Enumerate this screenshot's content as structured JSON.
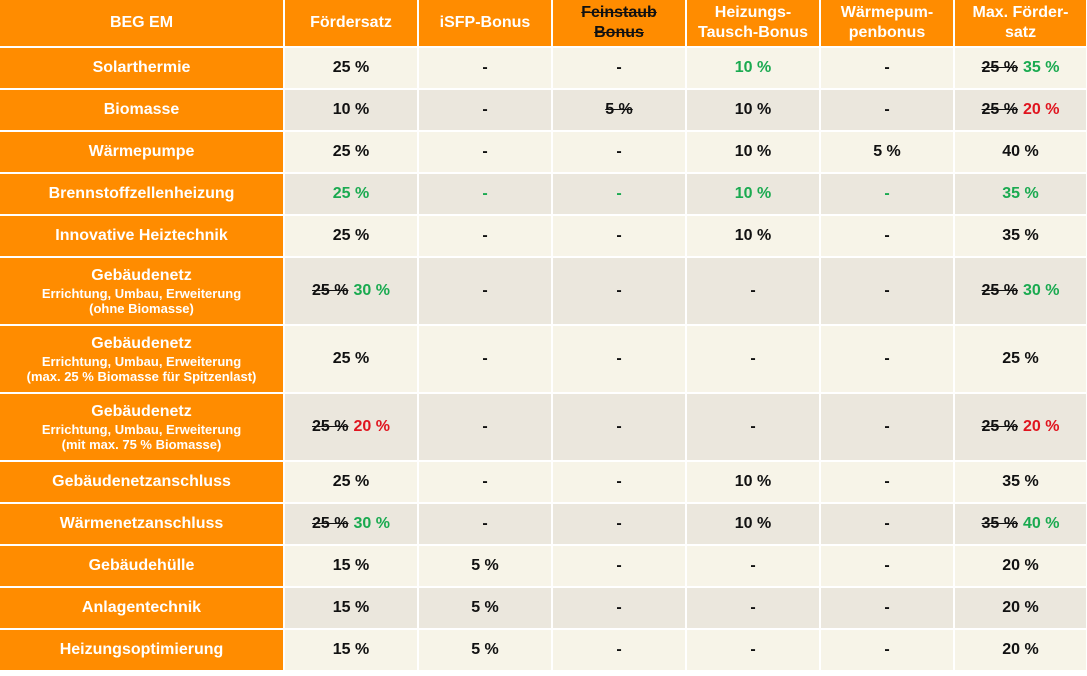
{
  "headers": [
    {
      "text": "BEG EM",
      "strike": false
    },
    {
      "text": "Fördersatz",
      "strike": false
    },
    {
      "text": "iSFP-Bonus",
      "strike": false
    },
    {
      "text": "Feinstaub Bonus",
      "strike": true
    },
    {
      "text": "Heizungs-Tausch-Bonus",
      "strike": false
    },
    {
      "text": "Wärmepum-penbonus",
      "strike": false
    },
    {
      "text": "Max. Förder-satz",
      "strike": false
    }
  ],
  "rows": [
    {
      "label": "Solarthermie",
      "sub": [],
      "cells": [
        [
          {
            "t": "25 %"
          }
        ],
        [
          {
            "t": "-"
          }
        ],
        [
          {
            "t": "-"
          }
        ],
        [
          {
            "t": "10 %",
            "c": "green"
          }
        ],
        [
          {
            "t": "-"
          }
        ],
        [
          {
            "t": "25 %",
            "s": true
          },
          {
            "t": "35 %",
            "c": "green"
          }
        ]
      ]
    },
    {
      "label": "Biomasse",
      "sub": [],
      "cells": [
        [
          {
            "t": "10 %"
          }
        ],
        [
          {
            "t": "-"
          }
        ],
        [
          {
            "t": "5 %",
            "s": true
          }
        ],
        [
          {
            "t": "10 %"
          }
        ],
        [
          {
            "t": "-"
          }
        ],
        [
          {
            "t": "25 %",
            "s": true
          },
          {
            "t": "20 %",
            "c": "red"
          }
        ]
      ]
    },
    {
      "label": "Wärmepumpe",
      "sub": [],
      "cells": [
        [
          {
            "t": "25 %"
          }
        ],
        [
          {
            "t": "-"
          }
        ],
        [
          {
            "t": "-"
          }
        ],
        [
          {
            "t": "10 %"
          }
        ],
        [
          {
            "t": "5 %"
          }
        ],
        [
          {
            "t": "40 %"
          }
        ]
      ]
    },
    {
      "label": "Brennstoffzellenheizung",
      "sub": [],
      "cells": [
        [
          {
            "t": "25 %",
            "c": "green"
          }
        ],
        [
          {
            "t": "-",
            "c": "green"
          }
        ],
        [
          {
            "t": "-",
            "c": "green"
          }
        ],
        [
          {
            "t": "10 %",
            "c": "green"
          }
        ],
        [
          {
            "t": "-",
            "c": "green"
          }
        ],
        [
          {
            "t": "35 %",
            "c": "green"
          }
        ]
      ]
    },
    {
      "label": "Innovative Heiztechnik",
      "sub": [],
      "cells": [
        [
          {
            "t": "25 %"
          }
        ],
        [
          {
            "t": "-"
          }
        ],
        [
          {
            "t": "-"
          }
        ],
        [
          {
            "t": "10 %"
          }
        ],
        [
          {
            "t": "-"
          }
        ],
        [
          {
            "t": "35 %"
          }
        ]
      ]
    },
    {
      "label": "Gebäudenetz",
      "sub": [
        "Errichtung, Umbau, Erweiterung",
        "(ohne Biomasse)"
      ],
      "cells": [
        [
          {
            "t": "25 %",
            "s": true
          },
          {
            "t": "30 %",
            "c": "green"
          }
        ],
        [
          {
            "t": "-"
          }
        ],
        [
          {
            "t": "-"
          }
        ],
        [
          {
            "t": "-"
          }
        ],
        [
          {
            "t": "-"
          }
        ],
        [
          {
            "t": "25 %",
            "s": true
          },
          {
            "t": "30 %",
            "c": "green"
          }
        ]
      ]
    },
    {
      "label": "Gebäudenetz",
      "sub": [
        "Errichtung, Umbau, Erweiterung",
        "(max. 25 % Biomasse für Spitzenlast)"
      ],
      "cells": [
        [
          {
            "t": "25 %"
          }
        ],
        [
          {
            "t": "-"
          }
        ],
        [
          {
            "t": "-"
          }
        ],
        [
          {
            "t": "-"
          }
        ],
        [
          {
            "t": "-"
          }
        ],
        [
          {
            "t": "25 %"
          }
        ]
      ]
    },
    {
      "label": "Gebäudenetz",
      "sub": [
        "Errichtung, Umbau, Erweiterung",
        "(mit max. 75 % Biomasse)"
      ],
      "cells": [
        [
          {
            "t": "25 %",
            "s": true
          },
          {
            "t": "20 %",
            "c": "red"
          }
        ],
        [
          {
            "t": "-"
          }
        ],
        [
          {
            "t": "-"
          }
        ],
        [
          {
            "t": "-"
          }
        ],
        [
          {
            "t": "-"
          }
        ],
        [
          {
            "t": "25 %",
            "s": true
          },
          {
            "t": "20 %",
            "c": "red"
          }
        ]
      ]
    },
    {
      "label": "Gebäudenetzanschluss",
      "sub": [],
      "cells": [
        [
          {
            "t": "25 %"
          }
        ],
        [
          {
            "t": "-"
          }
        ],
        [
          {
            "t": "-"
          }
        ],
        [
          {
            "t": "10 %"
          }
        ],
        [
          {
            "t": "-"
          }
        ],
        [
          {
            "t": "35 %"
          }
        ]
      ]
    },
    {
      "label": "Wärmenetzanschluss",
      "sub": [],
      "cells": [
        [
          {
            "t": "25 %",
            "s": true
          },
          {
            "t": "30 %",
            "c": "green"
          }
        ],
        [
          {
            "t": "-"
          }
        ],
        [
          {
            "t": "-"
          }
        ],
        [
          {
            "t": "10 %"
          }
        ],
        [
          {
            "t": "-"
          }
        ],
        [
          {
            "t": "35 %",
            "s": true
          },
          {
            "t": "40 %",
            "c": "green"
          }
        ]
      ]
    },
    {
      "label": "Gebäudehülle",
      "sub": [],
      "cells": [
        [
          {
            "t": "15 %"
          }
        ],
        [
          {
            "t": "5 %"
          }
        ],
        [
          {
            "t": "-"
          }
        ],
        [
          {
            "t": "-"
          }
        ],
        [
          {
            "t": "-"
          }
        ],
        [
          {
            "t": "20 %"
          }
        ]
      ]
    },
    {
      "label": "Anlagentechnik",
      "sub": [],
      "cells": [
        [
          {
            "t": "15 %"
          }
        ],
        [
          {
            "t": "5 %"
          }
        ],
        [
          {
            "t": "-"
          }
        ],
        [
          {
            "t": "-"
          }
        ],
        [
          {
            "t": "-"
          }
        ],
        [
          {
            "t": "20 %"
          }
        ]
      ]
    },
    {
      "label": "Heizungsoptimierung",
      "sub": [],
      "cells": [
        [
          {
            "t": "15 %"
          }
        ],
        [
          {
            "t": "5 %"
          }
        ],
        [
          {
            "t": "-"
          }
        ],
        [
          {
            "t": "-"
          }
        ],
        [
          {
            "t": "-"
          }
        ],
        [
          {
            "t": "20 %"
          }
        ]
      ]
    }
  ],
  "colors": {
    "header_bg": "#ff8c00",
    "row_light": "#f7f4e8",
    "row_dark": "#ebe7dd",
    "green": "#1aaa50",
    "red": "#e0141e"
  }
}
